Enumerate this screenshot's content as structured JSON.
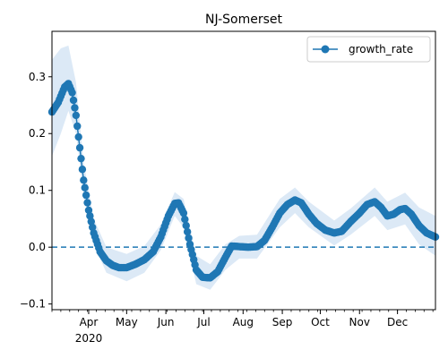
{
  "chart_data": {
    "type": "line",
    "title": "NJ-Somerset",
    "xlabel": "",
    "ylabel": "",
    "x_axis": {
      "ticks": [
        {
          "date": "2020-04-01",
          "label": "Apr"
        },
        {
          "date": "2020-05-01",
          "label": "May"
        },
        {
          "date": "2020-06-01",
          "label": "Jun"
        },
        {
          "date": "2020-07-01",
          "label": "Jul"
        },
        {
          "date": "2020-08-01",
          "label": "Aug"
        },
        {
          "date": "2020-09-01",
          "label": "Sep"
        },
        {
          "date": "2020-10-01",
          "label": "Oct"
        },
        {
          "date": "2020-11-01",
          "label": "Nov"
        },
        {
          "date": "2020-12-01",
          "label": "Dec"
        }
      ],
      "year_label": "2020",
      "range": [
        "2020-03-03",
        "2020-12-31"
      ]
    },
    "y_axis": {
      "ticks": [
        -0.1,
        0.0,
        0.1,
        0.2,
        0.3
      ],
      "tick_labels": [
        "−0.1",
        "0.0",
        "0.1",
        "0.2",
        "0.3"
      ],
      "ylim": [
        -0.11,
        0.38
      ]
    },
    "grid": false,
    "legend": {
      "position": "top-right",
      "entries": [
        "growth_rate"
      ]
    },
    "reference_line": {
      "y": 0.0,
      "style": "dashed"
    },
    "colors": {
      "series": "#1f77b4",
      "band": "#dce9f6"
    },
    "series": [
      {
        "name": "growth_rate",
        "marker": "circle",
        "points": [
          [
            "2020-03-03",
            0.238
          ],
          [
            "2020-03-08",
            0.255
          ],
          [
            "2020-03-13",
            0.282
          ],
          [
            "2020-03-16",
            0.288
          ],
          [
            "2020-03-19",
            0.272
          ],
          [
            "2020-03-22",
            0.232
          ],
          [
            "2020-03-25",
            0.175
          ],
          [
            "2020-03-28",
            0.118
          ],
          [
            "2020-04-01",
            0.065
          ],
          [
            "2020-04-05",
            0.025
          ],
          [
            "2020-04-10",
            -0.008
          ],
          [
            "2020-04-15",
            -0.024
          ],
          [
            "2020-04-20",
            -0.032
          ],
          [
            "2020-04-25",
            -0.036
          ],
          [
            "2020-05-01",
            -0.036
          ],
          [
            "2020-05-08",
            -0.03
          ],
          [
            "2020-05-15",
            -0.022
          ],
          [
            "2020-05-22",
            -0.008
          ],
          [
            "2020-05-28",
            0.018
          ],
          [
            "2020-06-03",
            0.055
          ],
          [
            "2020-06-08",
            0.077
          ],
          [
            "2020-06-11",
            0.078
          ],
          [
            "2020-06-15",
            0.06
          ],
          [
            "2020-06-20",
            0.005
          ],
          [
            "2020-06-25",
            -0.04
          ],
          [
            "2020-06-30",
            -0.053
          ],
          [
            "2020-07-06",
            -0.054
          ],
          [
            "2020-07-12",
            -0.043
          ],
          [
            "2020-07-18",
            -0.018
          ],
          [
            "2020-07-23",
            0.002
          ],
          [
            "2020-07-29",
            0.001
          ],
          [
            "2020-08-05",
            0.0
          ],
          [
            "2020-08-12",
            0.001
          ],
          [
            "2020-08-18",
            0.012
          ],
          [
            "2020-08-24",
            0.035
          ],
          [
            "2020-08-30",
            0.06
          ],
          [
            "2020-09-05",
            0.075
          ],
          [
            "2020-09-11",
            0.083
          ],
          [
            "2020-09-16",
            0.078
          ],
          [
            "2020-09-22",
            0.058
          ],
          [
            "2020-09-28",
            0.042
          ],
          [
            "2020-10-05",
            0.03
          ],
          [
            "2020-10-12",
            0.025
          ],
          [
            "2020-10-18",
            0.028
          ],
          [
            "2020-10-25",
            0.045
          ],
          [
            "2020-11-01",
            0.06
          ],
          [
            "2020-11-07",
            0.075
          ],
          [
            "2020-11-13",
            0.08
          ],
          [
            "2020-11-18",
            0.07
          ],
          [
            "2020-11-23",
            0.055
          ],
          [
            "2020-11-28",
            0.058
          ],
          [
            "2020-12-03",
            0.066
          ],
          [
            "2020-12-07",
            0.068
          ],
          [
            "2020-12-12",
            0.058
          ],
          [
            "2020-12-18",
            0.038
          ],
          [
            "2020-12-24",
            0.025
          ],
          [
            "2020-12-31",
            0.018
          ]
        ],
        "band": [
          [
            "2020-03-03",
            0.16,
            0.33
          ],
          [
            "2020-03-10",
            0.2,
            0.35
          ],
          [
            "2020-03-16",
            0.24,
            0.355
          ],
          [
            "2020-03-22",
            0.2,
            0.29
          ],
          [
            "2020-03-28",
            0.09,
            0.15
          ],
          [
            "2020-04-05",
            0.005,
            0.05
          ],
          [
            "2020-04-15",
            -0.045,
            0.0
          ],
          [
            "2020-05-01",
            -0.06,
            -0.012
          ],
          [
            "2020-05-15",
            -0.045,
            0.002
          ],
          [
            "2020-05-28",
            -0.005,
            0.04
          ],
          [
            "2020-06-08",
            0.055,
            0.097
          ],
          [
            "2020-06-15",
            0.035,
            0.085
          ],
          [
            "2020-06-25",
            -0.065,
            -0.015
          ],
          [
            "2020-07-06",
            -0.075,
            -0.03
          ],
          [
            "2020-07-18",
            -0.04,
            0.005
          ],
          [
            "2020-07-29",
            -0.02,
            0.02
          ],
          [
            "2020-08-12",
            -0.02,
            0.022
          ],
          [
            "2020-08-30",
            0.035,
            0.085
          ],
          [
            "2020-09-11",
            0.06,
            0.105
          ],
          [
            "2020-09-22",
            0.035,
            0.08
          ],
          [
            "2020-10-12",
            0.003,
            0.047
          ],
          [
            "2020-10-25",
            0.022,
            0.068
          ],
          [
            "2020-11-13",
            0.055,
            0.105
          ],
          [
            "2020-11-23",
            0.03,
            0.08
          ],
          [
            "2020-12-07",
            0.04,
            0.096
          ],
          [
            "2020-12-18",
            0.005,
            0.07
          ],
          [
            "2020-12-31",
            -0.015,
            0.055
          ]
        ]
      }
    ]
  }
}
